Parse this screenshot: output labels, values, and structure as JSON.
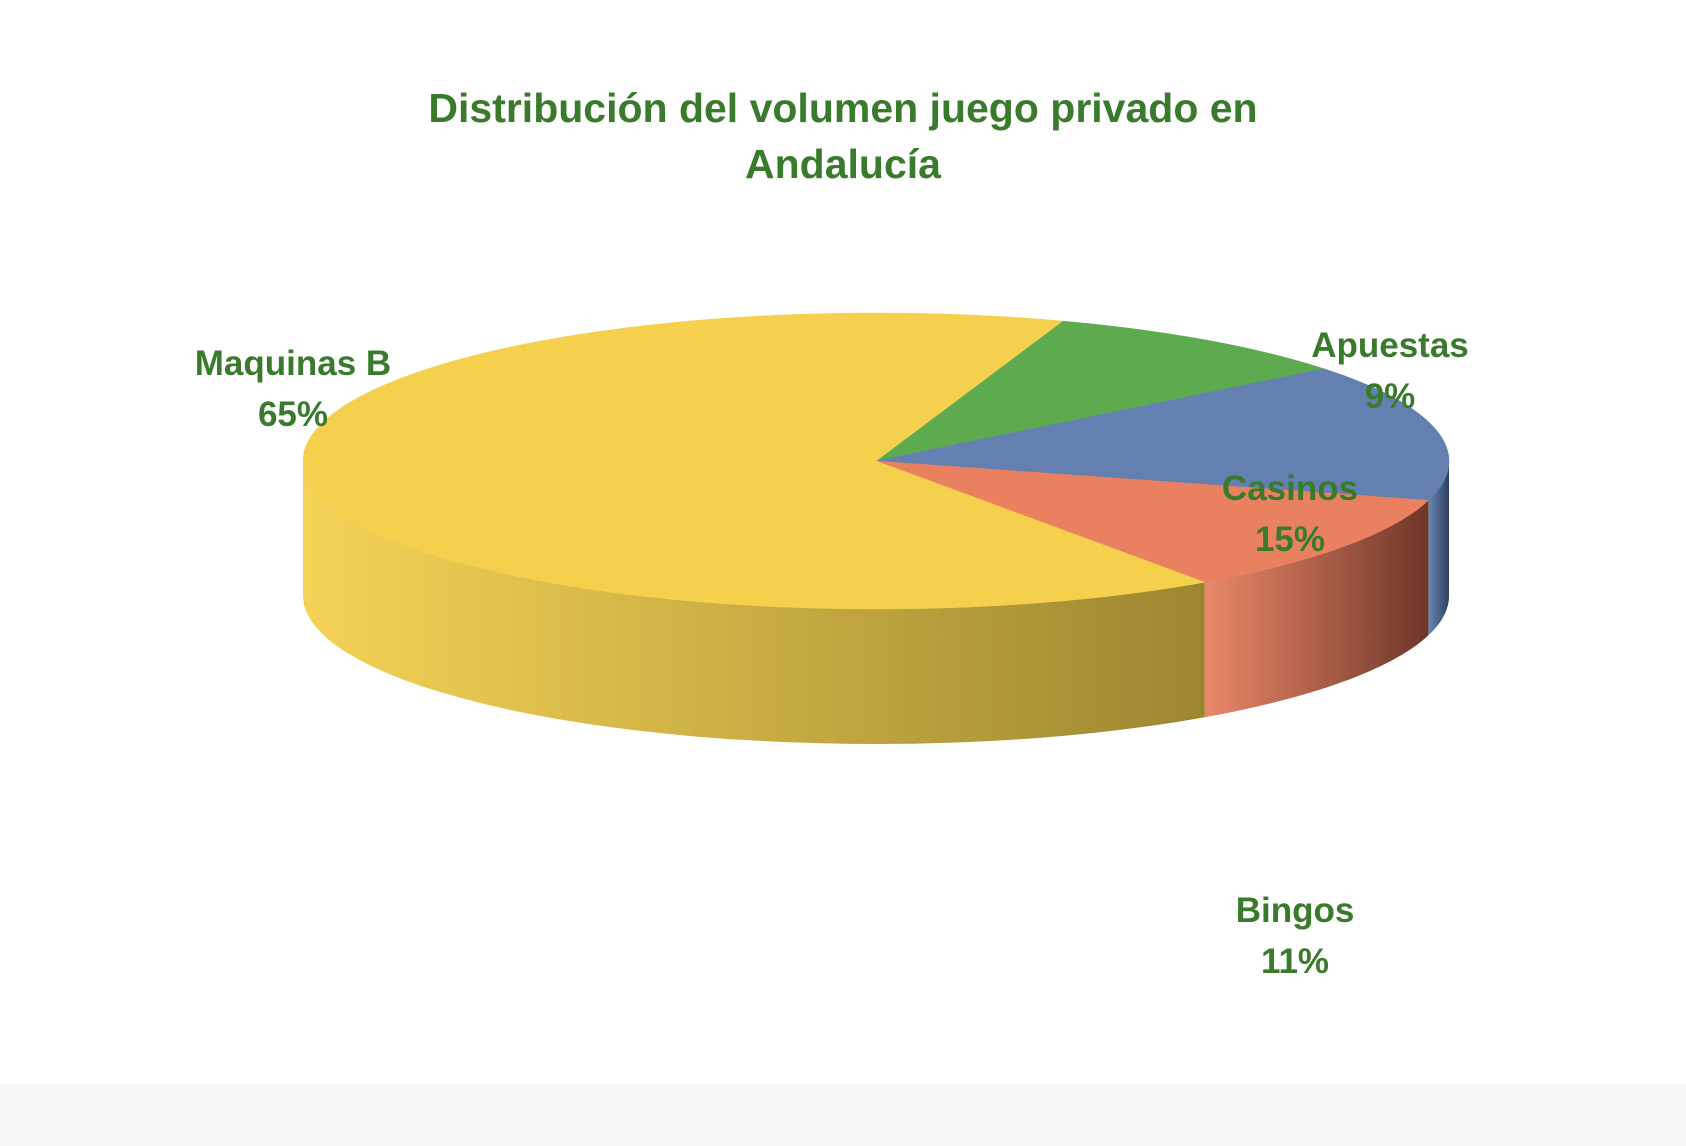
{
  "chart_data": {
    "type": "pie",
    "title": "Distribución del volumen juego privado en Andalucía",
    "title_lines": [
      "Distribución del volumen juego privado en",
      "Andalucía"
    ],
    "label_color": "#3a7a2c",
    "slices": [
      {
        "label": "Apuestas",
        "value": 9,
        "value_label": "9%",
        "color": "#5dab4e",
        "side_color": "#3a6d30"
      },
      {
        "label": "Casinos",
        "value": 15,
        "value_label": "15%",
        "color": "#6380b0",
        "side_color": "#2c3e5c"
      },
      {
        "label": "Bingos",
        "value": 11,
        "value_label": "11%",
        "color": "#e98161",
        "side_color": "#6e3628"
      },
      {
        "label": "Maquinas B",
        "value": 65,
        "value_label": "65%",
        "color": "#f4d04d",
        "side_color": "#9c8630"
      }
    ],
    "style": "3d-pie",
    "legend": "none"
  }
}
